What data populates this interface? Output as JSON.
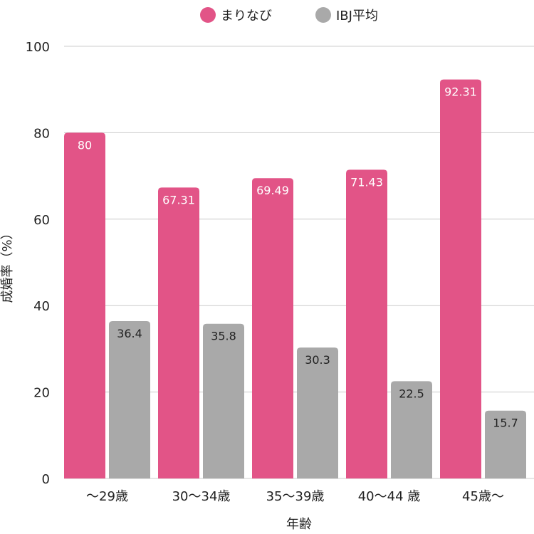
{
  "chart_data": {
    "type": "bar",
    "categories": [
      "〜29歳",
      "30〜34歳",
      "35〜39歳",
      "40〜44 歳",
      "45歳〜"
    ],
    "series": [
      {
        "name": "まりなび",
        "color": "#e25487",
        "values": [
          80,
          67.31,
          69.49,
          71.43,
          92.31
        ],
        "labels": [
          "80",
          "67.31",
          "69.49",
          "71.43",
          "92.31"
        ],
        "label_color": "#ffffff"
      },
      {
        "name": "IBJ平均",
        "color": "#a9a9a9",
        "values": [
          36.4,
          35.8,
          30.3,
          22.5,
          15.7
        ],
        "labels": [
          "36.4",
          "35.8",
          "30.3",
          "22.5",
          "15.7"
        ],
        "label_color": "#222222"
      }
    ],
    "xlabel": "年齢",
    "ylabel": "成婚率（%）",
    "ylim": [
      0,
      100
    ],
    "yticks": [
      "0",
      "20",
      "40",
      "60",
      "80",
      "100"
    ],
    "grid": true,
    "legend_position": "top-center"
  }
}
